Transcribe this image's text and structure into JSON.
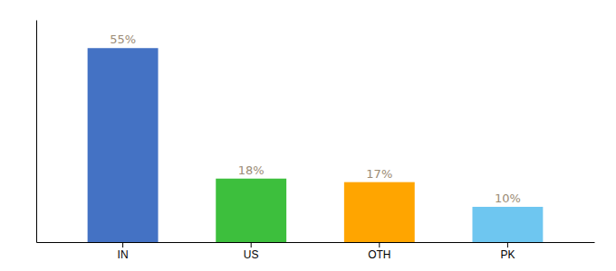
{
  "chart_data": {
    "type": "bar",
    "categories": [
      "IN",
      "US",
      "OTH",
      "PK"
    ],
    "values": [
      55,
      18,
      17,
      10
    ],
    "value_labels": [
      "55%",
      "18%",
      "17%",
      "10%"
    ],
    "colors": [
      "#4472C4",
      "#3DBF3D",
      "#FFA500",
      "#6EC6F0"
    ],
    "ylim": [
      0,
      63
    ],
    "grid": false,
    "data_labels": true,
    "tick_labels": "x"
  }
}
